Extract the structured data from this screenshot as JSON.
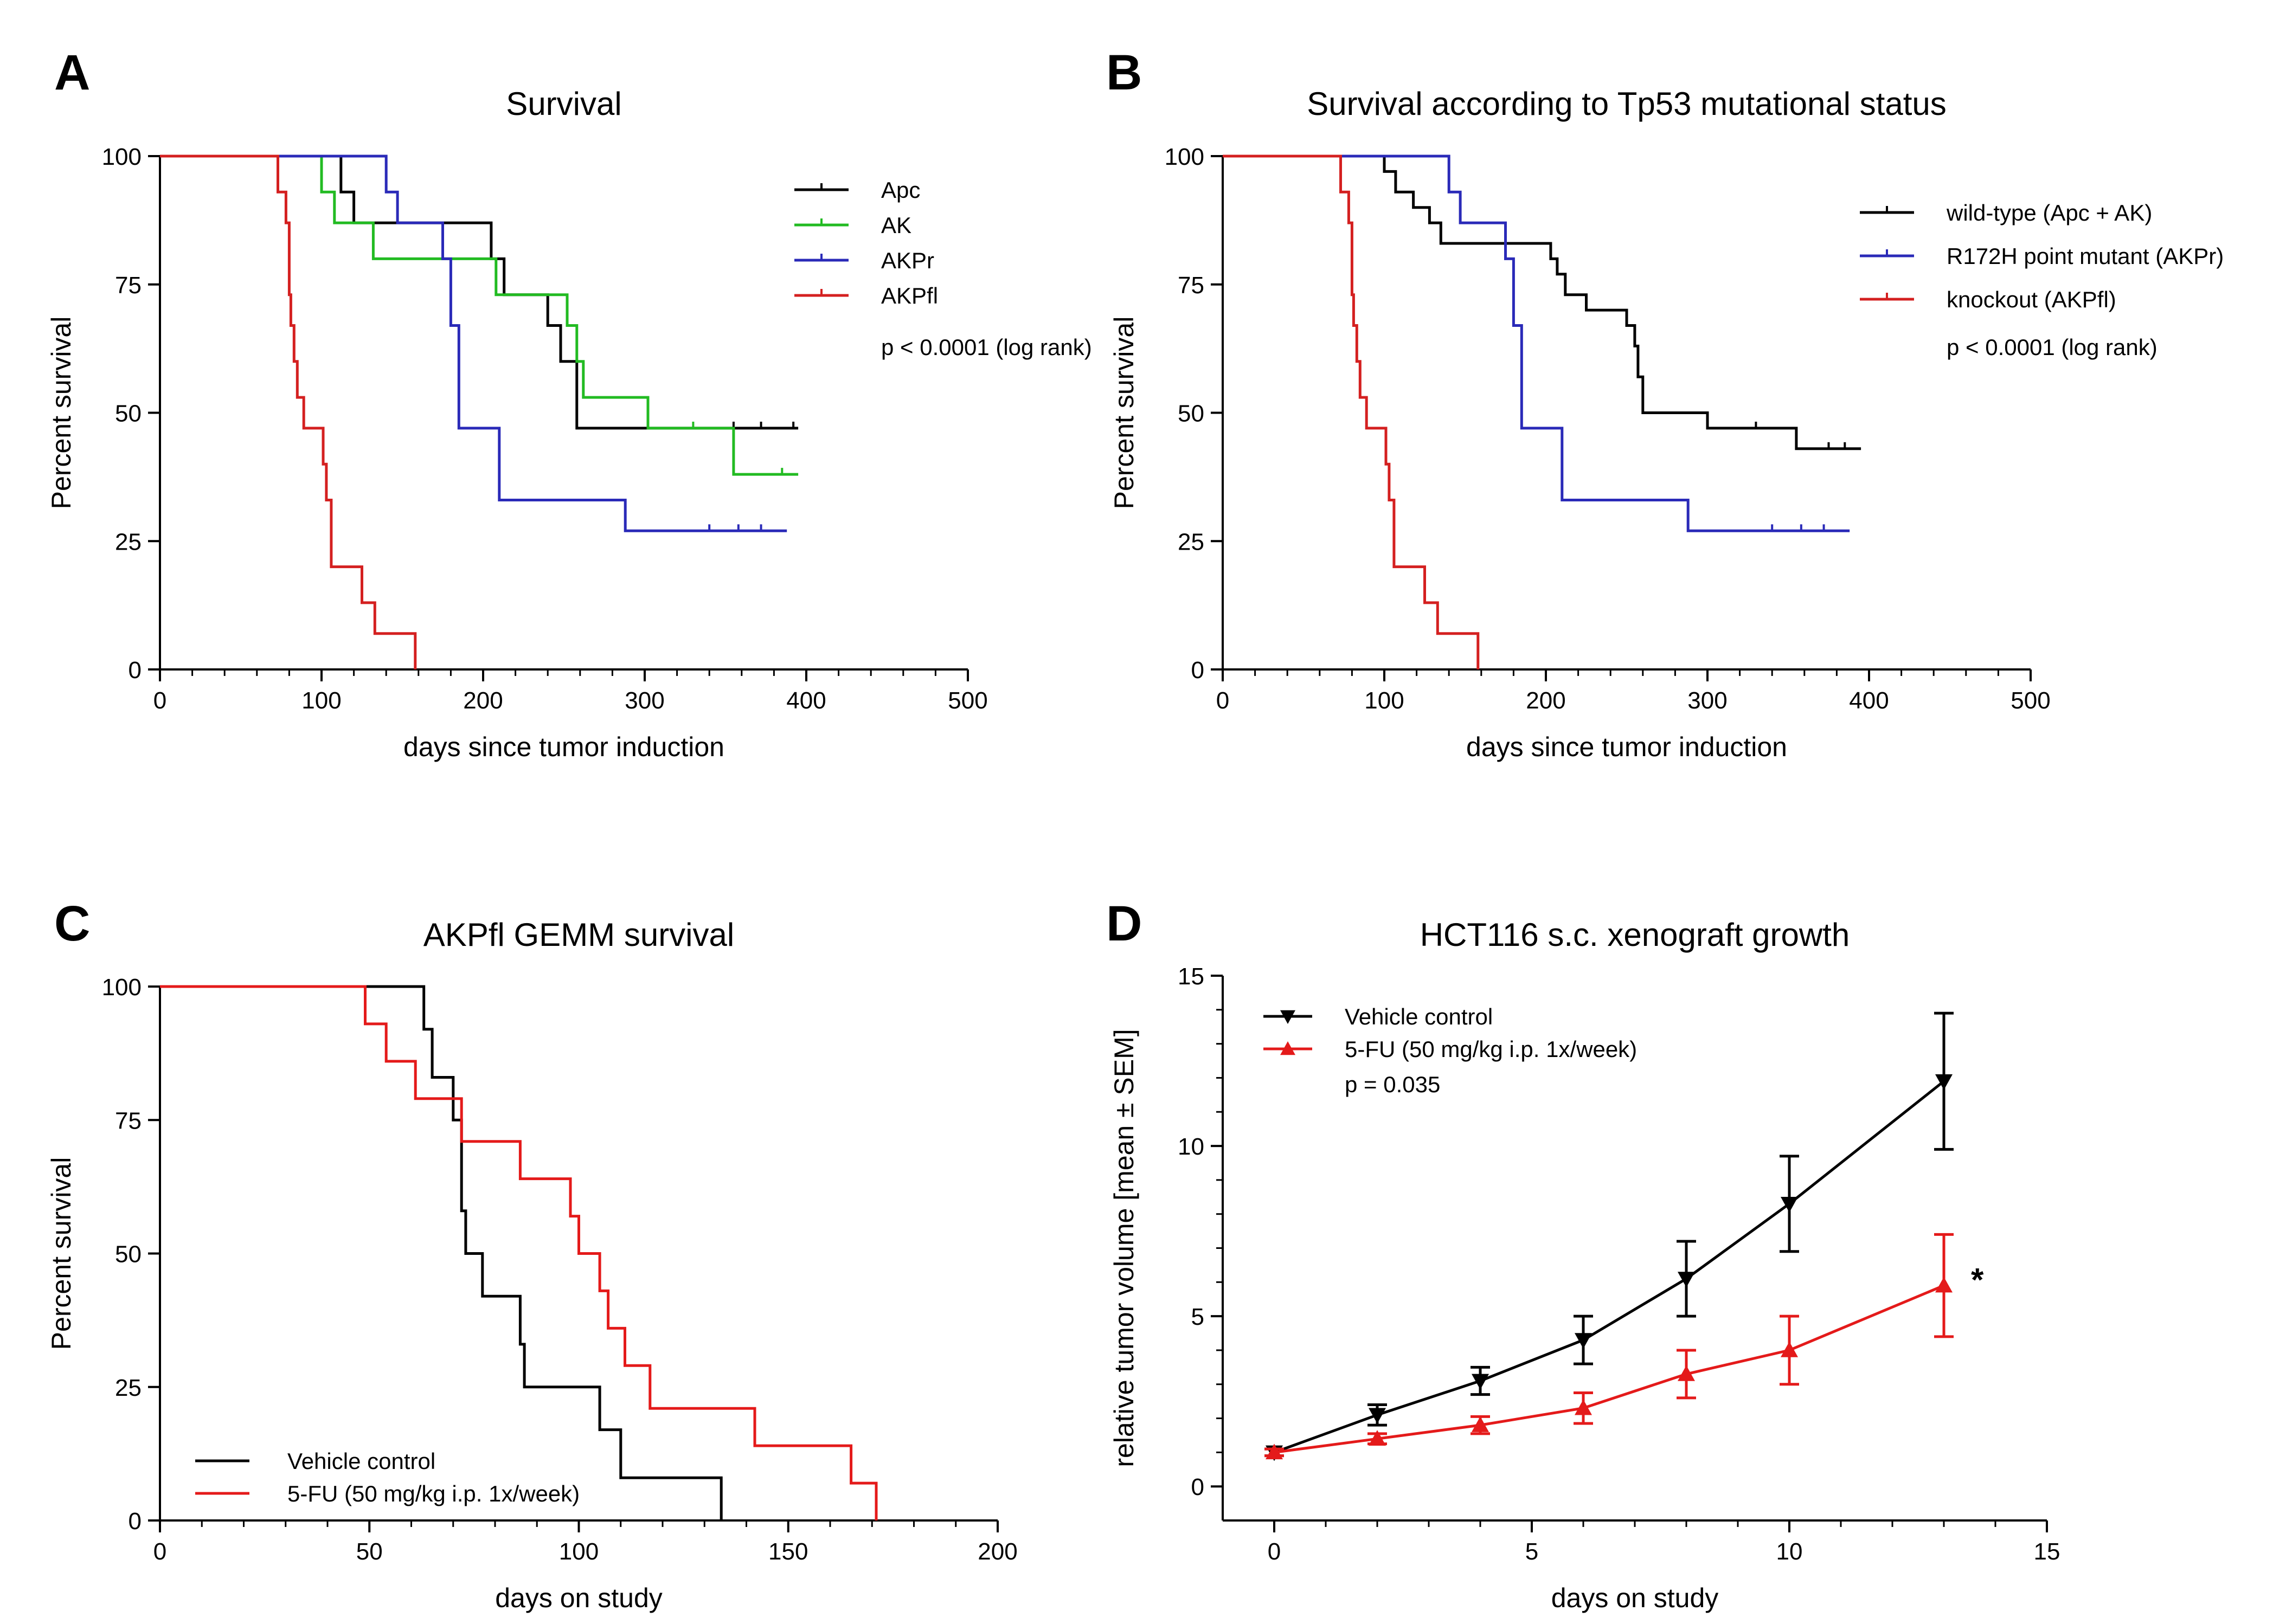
{
  "chart_data": [
    {
      "panel_label": "A",
      "type": "line",
      "subtype": "kaplan-meier",
      "title": "Survival",
      "xlabel": "days since tumor induction",
      "ylabel": "Percent survival",
      "xlim": [
        0,
        500
      ],
      "ylim": [
        0,
        100
      ],
      "xticks": [
        0,
        100,
        200,
        300,
        400,
        500
      ],
      "yticks": [
        0,
        25,
        50,
        75,
        100
      ],
      "legend_position": "top-right",
      "annotation": "p < 0.0001 (log rank)",
      "series": [
        {
          "name": "Apc",
          "color": "#000000",
          "steps": [
            [
              0,
              100
            ],
            [
              112,
              100
            ],
            [
              112,
              93
            ],
            [
              120,
              93
            ],
            [
              120,
              87
            ],
            [
              205,
              87
            ],
            [
              205,
              80
            ],
            [
              213,
              80
            ],
            [
              213,
              73
            ],
            [
              240,
              73
            ],
            [
              240,
              67
            ],
            [
              248,
              67
            ],
            [
              248,
              60
            ],
            [
              258,
              60
            ],
            [
              258,
              47
            ],
            [
              395,
              47
            ]
          ],
          "censored": [
            [
              355,
              47
            ],
            [
              372,
              47
            ],
            [
              392,
              47
            ]
          ]
        },
        {
          "name": "AK",
          "color": "#22bb22",
          "steps": [
            [
              0,
              100
            ],
            [
              100,
              100
            ],
            [
              100,
              93
            ],
            [
              108,
              93
            ],
            [
              108,
              87
            ],
            [
              132,
              87
            ],
            [
              132,
              80
            ],
            [
              208,
              80
            ],
            [
              208,
              73
            ],
            [
              252,
              73
            ],
            [
              252,
              67
            ],
            [
              258,
              67
            ],
            [
              258,
              60
            ],
            [
              262,
              60
            ],
            [
              262,
              53
            ],
            [
              302,
              53
            ],
            [
              302,
              47
            ],
            [
              355,
              47
            ],
            [
              355,
              38
            ],
            [
              395,
              38
            ]
          ],
          "censored": [
            [
              330,
              47
            ],
            [
              385,
              38
            ]
          ]
        },
        {
          "name": "AKPr",
          "color": "#2a2ab8",
          "steps": [
            [
              0,
              100
            ],
            [
              140,
              100
            ],
            [
              140,
              93
            ],
            [
              147,
              93
            ],
            [
              147,
              87
            ],
            [
              175,
              87
            ],
            [
              175,
              80
            ],
            [
              180,
              80
            ],
            [
              180,
              67
            ],
            [
              185,
              67
            ],
            [
              185,
              47
            ],
            [
              210,
              47
            ],
            [
              210,
              33
            ],
            [
              288,
              33
            ],
            [
              288,
              27
            ],
            [
              388,
              27
            ]
          ],
          "censored": [
            [
              340,
              27
            ],
            [
              358,
              27
            ],
            [
              372,
              27
            ]
          ]
        },
        {
          "name": "AKPfl",
          "color": "#d42020",
          "steps": [
            [
              0,
              100
            ],
            [
              73,
              100
            ],
            [
              73,
              93
            ],
            [
              78,
              93
            ],
            [
              78,
              87
            ],
            [
              80,
              87
            ],
            [
              80,
              73
            ],
            [
              81,
              73
            ],
            [
              81,
              67
            ],
            [
              83,
              67
            ],
            [
              83,
              60
            ],
            [
              85,
              60
            ],
            [
              85,
              53
            ],
            [
              89,
              53
            ],
            [
              89,
              47
            ],
            [
              101,
              47
            ],
            [
              101,
              40
            ],
            [
              103,
              40
            ],
            [
              103,
              33
            ],
            [
              106,
              33
            ],
            [
              106,
              20
            ],
            [
              125,
              20
            ],
            [
              125,
              13
            ],
            [
              133,
              13
            ],
            [
              133,
              7
            ],
            [
              158,
              7
            ],
            [
              158,
              0
            ]
          ],
          "censored": []
        }
      ]
    },
    {
      "panel_label": "B",
      "type": "line",
      "subtype": "kaplan-meier",
      "title": "Survival according to Tp53 mutational status",
      "xlabel": "days since tumor induction",
      "ylabel": "Percent survival",
      "xlim": [
        0,
        500
      ],
      "ylim": [
        0,
        100
      ],
      "xticks": [
        0,
        100,
        200,
        300,
        400,
        500
      ],
      "yticks": [
        0,
        25,
        50,
        75,
        100
      ],
      "legend_position": "top-right",
      "annotation": "p < 0.0001 (log rank)",
      "series": [
        {
          "name": "wild-type (Apc + AK)",
          "color": "#000000",
          "steps": [
            [
              0,
              100
            ],
            [
              100,
              100
            ],
            [
              100,
              97
            ],
            [
              107,
              97
            ],
            [
              107,
              93
            ],
            [
              118,
              93
            ],
            [
              118,
              90
            ],
            [
              128,
              90
            ],
            [
              128,
              87
            ],
            [
              135,
              87
            ],
            [
              135,
              83
            ],
            [
              203,
              83
            ],
            [
              203,
              80
            ],
            [
              207,
              80
            ],
            [
              207,
              77
            ],
            [
              212,
              77
            ],
            [
              212,
              73
            ],
            [
              225,
              73
            ],
            [
              225,
              70
            ],
            [
              250,
              70
            ],
            [
              250,
              67
            ],
            [
              255,
              67
            ],
            [
              255,
              63
            ],
            [
              257,
              63
            ],
            [
              257,
              57
            ],
            [
              260,
              57
            ],
            [
              260,
              50
            ],
            [
              300,
              50
            ],
            [
              300,
              47
            ],
            [
              355,
              47
            ],
            [
              355,
              43
            ],
            [
              395,
              43
            ]
          ],
          "censored": [
            [
              330,
              47
            ],
            [
              375,
              43
            ],
            [
              385,
              43
            ]
          ]
        },
        {
          "name": "R172H point mutant (AKPr)",
          "color": "#2a2ab8",
          "steps": [
            [
              0,
              100
            ],
            [
              140,
              100
            ],
            [
              140,
              93
            ],
            [
              147,
              93
            ],
            [
              147,
              87
            ],
            [
              175,
              87
            ],
            [
              175,
              80
            ],
            [
              180,
              80
            ],
            [
              180,
              67
            ],
            [
              185,
              67
            ],
            [
              185,
              47
            ],
            [
              210,
              47
            ],
            [
              210,
              33
            ],
            [
              288,
              33
            ],
            [
              288,
              27
            ],
            [
              388,
              27
            ]
          ],
          "censored": [
            [
              340,
              27
            ],
            [
              358,
              27
            ],
            [
              372,
              27
            ]
          ]
        },
        {
          "name": "knockout (AKPfl)",
          "color": "#d42020",
          "steps": [
            [
              0,
              100
            ],
            [
              73,
              100
            ],
            [
              73,
              93
            ],
            [
              78,
              93
            ],
            [
              78,
              87
            ],
            [
              80,
              87
            ],
            [
              80,
              73
            ],
            [
              81,
              73
            ],
            [
              81,
              67
            ],
            [
              83,
              67
            ],
            [
              83,
              60
            ],
            [
              85,
              60
            ],
            [
              85,
              53
            ],
            [
              89,
              53
            ],
            [
              89,
              47
            ],
            [
              101,
              47
            ],
            [
              101,
              40
            ],
            [
              103,
              40
            ],
            [
              103,
              33
            ],
            [
              106,
              33
            ],
            [
              106,
              20
            ],
            [
              125,
              20
            ],
            [
              125,
              13
            ],
            [
              133,
              13
            ],
            [
              133,
              7
            ],
            [
              158,
              7
            ],
            [
              158,
              0
            ]
          ],
          "censored": []
        }
      ]
    },
    {
      "panel_label": "C",
      "type": "line",
      "subtype": "kaplan-meier",
      "title": "AKPfl GEMM survival",
      "xlabel": "days on study",
      "ylabel": "Percent survival",
      "xlim": [
        0,
        200
      ],
      "ylim": [
        0,
        100
      ],
      "xticks": [
        0,
        50,
        100,
        150,
        200
      ],
      "yticks": [
        0,
        25,
        50,
        75,
        100
      ],
      "legend_position": "bottom-left",
      "series": [
        {
          "name": "Vehicle control",
          "color": "#000000",
          "steps": [
            [
              0,
              100
            ],
            [
              63,
              100
            ],
            [
              63,
              92
            ],
            [
              65,
              92
            ],
            [
              65,
              83
            ],
            [
              70,
              83
            ],
            [
              70,
              75
            ],
            [
              72,
              75
            ],
            [
              72,
              58
            ],
            [
              73,
              58
            ],
            [
              73,
              50
            ],
            [
              77,
              50
            ],
            [
              77,
              42
            ],
            [
              86,
              42
            ],
            [
              86,
              33
            ],
            [
              87,
              33
            ],
            [
              87,
              25
            ],
            [
              105,
              25
            ],
            [
              105,
              17
            ],
            [
              110,
              17
            ],
            [
              110,
              8
            ],
            [
              134,
              8
            ],
            [
              134,
              0
            ]
          ]
        },
        {
          "name": "5-FU (50 mg/kg i.p. 1x/week)",
          "color": "#e41a1a",
          "steps": [
            [
              0,
              100
            ],
            [
              49,
              100
            ],
            [
              49,
              93
            ],
            [
              54,
              93
            ],
            [
              54,
              86
            ],
            [
              61,
              86
            ],
            [
              61,
              79
            ],
            [
              72,
              79
            ],
            [
              72,
              71
            ],
            [
              86,
              71
            ],
            [
              86,
              64
            ],
            [
              98,
              64
            ],
            [
              98,
              57
            ],
            [
              100,
              57
            ],
            [
              100,
              50
            ],
            [
              105,
              50
            ],
            [
              105,
              43
            ],
            [
              107,
              43
            ],
            [
              107,
              36
            ],
            [
              111,
              36
            ],
            [
              111,
              29
            ],
            [
              117,
              29
            ],
            [
              117,
              21
            ],
            [
              142,
              21
            ],
            [
              142,
              14
            ],
            [
              165,
              14
            ],
            [
              165,
              7
            ],
            [
              171,
              7
            ],
            [
              171,
              0
            ]
          ]
        }
      ]
    },
    {
      "panel_label": "D",
      "type": "line",
      "subtype": "errorbar",
      "title": "HCT116 s.c. xenograft growth",
      "xlabel": "days on study",
      "ylabel": "relative tumor volume [mean ± SEM]",
      "xlim": [
        -1,
        15
      ],
      "ylim": [
        -1,
        15
      ],
      "xticks": [
        0,
        5,
        10,
        15
      ],
      "yticks": [
        0,
        5,
        10,
        15
      ],
      "legend_position": "top-left",
      "annotation": "p = 0.035",
      "significance_marker": "*",
      "series": [
        {
          "name": "Vehicle control",
          "color": "#000000",
          "marker": "triangle-down",
          "x": [
            0,
            2,
            4,
            6,
            8,
            10,
            13
          ],
          "y": [
            1.0,
            2.1,
            3.1,
            4.3,
            6.1,
            8.3,
            11.9
          ],
          "err": [
            0.1,
            0.3,
            0.4,
            0.7,
            1.1,
            1.4,
            2.0
          ]
        },
        {
          "name": "5-FU (50 mg/kg i.p. 1x/week)",
          "color": "#e41a1a",
          "marker": "triangle-up",
          "x": [
            0,
            2,
            4,
            6,
            8,
            10,
            13
          ],
          "y": [
            1.0,
            1.4,
            1.8,
            2.3,
            3.3,
            4.0,
            5.9
          ],
          "err": [
            0.1,
            0.15,
            0.25,
            0.45,
            0.7,
            1.0,
            1.5
          ]
        }
      ]
    }
  ]
}
